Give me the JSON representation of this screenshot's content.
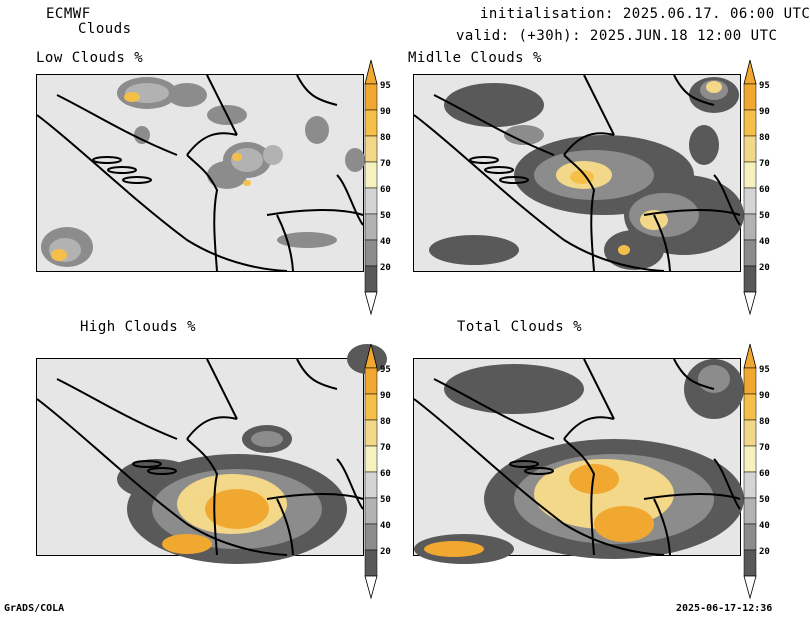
{
  "header": {
    "model": "ECMWF",
    "product": "Clouds",
    "initialisation": "initialisation: 2025.06.17. 06:00 UTC",
    "valid": "valid: (+30h): 2025.JUN.18 12:00 UTC"
  },
  "panels": [
    {
      "title": "Low Clouds %"
    },
    {
      "title": "Midlle Clouds %"
    },
    {
      "title": "High Clouds %"
    },
    {
      "title": "Total Clouds %"
    }
  ],
  "colorbar": {
    "ticks": [
      "95",
      "90",
      "80",
      "70",
      "60",
      "50",
      "40",
      "20"
    ],
    "colors": [
      "#f0a830",
      "#f5c04a",
      "#f3d889",
      "#f5f2c0",
      "#d4d4d4",
      "#b2b2b2",
      "#8c8c8c",
      "#595959"
    ]
  },
  "footer": {
    "left": "GrADS/COLA",
    "right": "2025-06-17-12:36"
  }
}
